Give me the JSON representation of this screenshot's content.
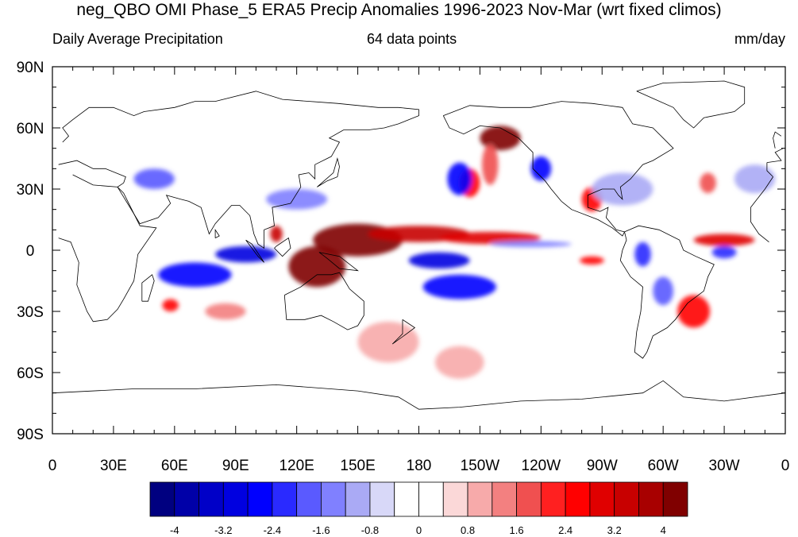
{
  "title": "neg_QBO OMI Phase_5 ERA5 Precip Anomalies 1996-2023 Nov-Mar (wrt fixed climos)",
  "left_subtitle": "Daily Average Precipitation",
  "center_subtitle": "64 data points",
  "right_subtitle": "mm/day",
  "map": {
    "projection": "cylindrical-equidistant",
    "lon_range": [
      0,
      360
    ],
    "lat_range": [
      -90,
      90
    ],
    "coastlines": true,
    "x_tick_labels": [
      "0",
      "30E",
      "60E",
      "90E",
      "120E",
      "150E",
      "180",
      "150W",
      "120W",
      "90W",
      "60W",
      "30W",
      "0"
    ],
    "x_tick_lons": [
      0,
      30,
      60,
      90,
      120,
      150,
      180,
      210,
      240,
      270,
      300,
      330,
      360
    ],
    "y_tick_labels": [
      "90N",
      "60N",
      "30N",
      "0",
      "30S",
      "60S",
      "90S"
    ],
    "y_tick_lats": [
      90,
      60,
      30,
      0,
      -30,
      -60,
      -90
    ]
  },
  "colorbar": {
    "colors": [
      "#000080",
      "#0000a8",
      "#0000c8",
      "#0000e0",
      "#0000ff",
      "#2a2aff",
      "#5a5aff",
      "#8080ff",
      "#aaaaf5",
      "#d8d8f8",
      "#ffffff",
      "#ffffff",
      "#fbd8d8",
      "#f7aaaa",
      "#f38080",
      "#f05050",
      "#ff2020",
      "#ff0000",
      "#e00000",
      "#c80000",
      "#a80000",
      "#800000"
    ],
    "tick_labels": [
      "-4",
      "-3.2",
      "-2.4",
      "-1.6",
      "-0.8",
      "0",
      "0.8",
      "1.6",
      "2.4",
      "3.2",
      "4"
    ]
  },
  "anomaly_features": [
    {
      "lon": 150,
      "lat": 5,
      "rx": 22,
      "ry": 8,
      "value": 4.5
    },
    {
      "lon": 130,
      "lat": -8,
      "rx": 14,
      "ry": 10,
      "value": 4.5
    },
    {
      "lon": 180,
      "lat": 8,
      "rx": 25,
      "ry": 4,
      "value": 3.2
    },
    {
      "lon": 215,
      "lat": 6,
      "rx": 25,
      "ry": 3,
      "value": 2.8
    },
    {
      "lon": 220,
      "lat": 55,
      "rx": 10,
      "ry": 6,
      "value": 4.2
    },
    {
      "lon": 215,
      "lat": 42,
      "rx": 4,
      "ry": 10,
      "value": 1.6
    },
    {
      "lon": 265,
      "lat": 25,
      "rx": 5,
      "ry": 6,
      "value": 2.4
    },
    {
      "lon": 330,
      "lat": 5,
      "rx": 15,
      "ry": 3,
      "value": 2.8
    },
    {
      "lon": 315,
      "lat": -30,
      "rx": 8,
      "ry": 8,
      "value": 2.6
    },
    {
      "lon": 322,
      "lat": 33,
      "rx": 4,
      "ry": 5,
      "value": 1.8
    },
    {
      "lon": 205,
      "lat": 33,
      "rx": 5,
      "ry": 7,
      "value": 2.4
    },
    {
      "lon": 110,
      "lat": 8,
      "rx": 3,
      "ry": 4,
      "value": 3.5
    },
    {
      "lon": 58,
      "lat": -27,
      "rx": 4,
      "ry": 3,
      "value": 2.6
    },
    {
      "lon": 265,
      "lat": -5,
      "rx": 6,
      "ry": 2,
      "value": 2.5
    },
    {
      "lon": 85,
      "lat": -30,
      "rx": 10,
      "ry": 4,
      "value": 1.4
    },
    {
      "lon": 165,
      "lat": -45,
      "rx": 15,
      "ry": 10,
      "value": 0.9
    },
    {
      "lon": 200,
      "lat": -55,
      "rx": 12,
      "ry": 8,
      "value": 0.9
    },
    {
      "lon": 95,
      "lat": -2,
      "rx": 15,
      "ry": 4,
      "value": -3.2
    },
    {
      "lon": 70,
      "lat": -12,
      "rx": 18,
      "ry": 6,
      "value": -2.8
    },
    {
      "lon": 190,
      "lat": -5,
      "rx": 15,
      "ry": 4,
      "value": -3.0
    },
    {
      "lon": 200,
      "lat": -18,
      "rx": 18,
      "ry": 6,
      "value": -2.6
    },
    {
      "lon": 200,
      "lat": 35,
      "rx": 6,
      "ry": 8,
      "value": -2.5
    },
    {
      "lon": 240,
      "lat": 40,
      "rx": 5,
      "ry": 6,
      "value": -2.8
    },
    {
      "lon": 120,
      "lat": 25,
      "rx": 15,
      "ry": 5,
      "value": -1.3
    },
    {
      "lon": 50,
      "lat": 35,
      "rx": 10,
      "ry": 5,
      "value": -1.8
    },
    {
      "lon": 330,
      "lat": -1,
      "rx": 6,
      "ry": 3,
      "value": -2.4
    },
    {
      "lon": 290,
      "lat": -2,
      "rx": 4,
      "ry": 6,
      "value": -2.2
    },
    {
      "lon": 300,
      "lat": -20,
      "rx": 5,
      "ry": 7,
      "value": -1.8
    },
    {
      "lon": 280,
      "lat": 30,
      "rx": 15,
      "ry": 8,
      "value": -1.2
    },
    {
      "lon": 345,
      "lat": 35,
      "rx": 10,
      "ry": 7,
      "value": -1.0
    },
    {
      "lon": 235,
      "lat": 3,
      "rx": 20,
      "ry": 1.5,
      "value": -1.4
    }
  ]
}
